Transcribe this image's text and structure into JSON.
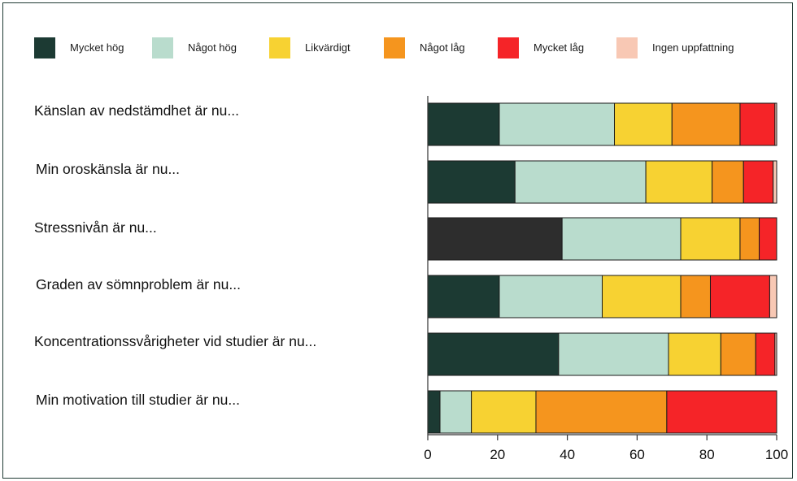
{
  "chart_data": {
    "type": "bar",
    "orientation": "horizontal",
    "stacked": true,
    "legend_position": "top",
    "grid": false,
    "xlim": [
      0,
      100
    ],
    "x_ticks": [
      "0",
      "20",
      "40",
      "60",
      "80",
      "100"
    ],
    "categories": [
      "Känslan av nedstämdhet är nu...",
      "Min oroskänsla är nu...",
      "Stressnivån är nu...",
      "Graden av sömnproblem är nu...",
      "Koncentrationssvårigheter vid studier är nu...",
      "Min motivation till studier är nu..."
    ],
    "series": [
      {
        "name": "Mycket hög",
        "color": "#1c3a33",
        "values": [
          20.5,
          25,
          38.5,
          20.5,
          37.5,
          3.5
        ]
      },
      {
        "name": "Något hög",
        "color": "#b9dccd",
        "values": [
          33,
          37.5,
          34,
          29.5,
          31.5,
          9
        ]
      },
      {
        "name": "Likvärdigt",
        "color": "#f7d232",
        "values": [
          16.5,
          19,
          17,
          22.5,
          15,
          18.5
        ]
      },
      {
        "name": "Något låg",
        "color": "#f5951e",
        "values": [
          19.5,
          9,
          5.5,
          8.5,
          10,
          37.5
        ]
      },
      {
        "name": "Mycket låg",
        "color": "#f52428",
        "values": [
          10,
          8.5,
          5,
          17,
          5.5,
          31.5
        ]
      },
      {
        "name": "Ingen uppfattning",
        "color": "#f8c8b4",
        "values": [
          0.5,
          1,
          0,
          2,
          0.5,
          0
        ]
      }
    ]
  }
}
